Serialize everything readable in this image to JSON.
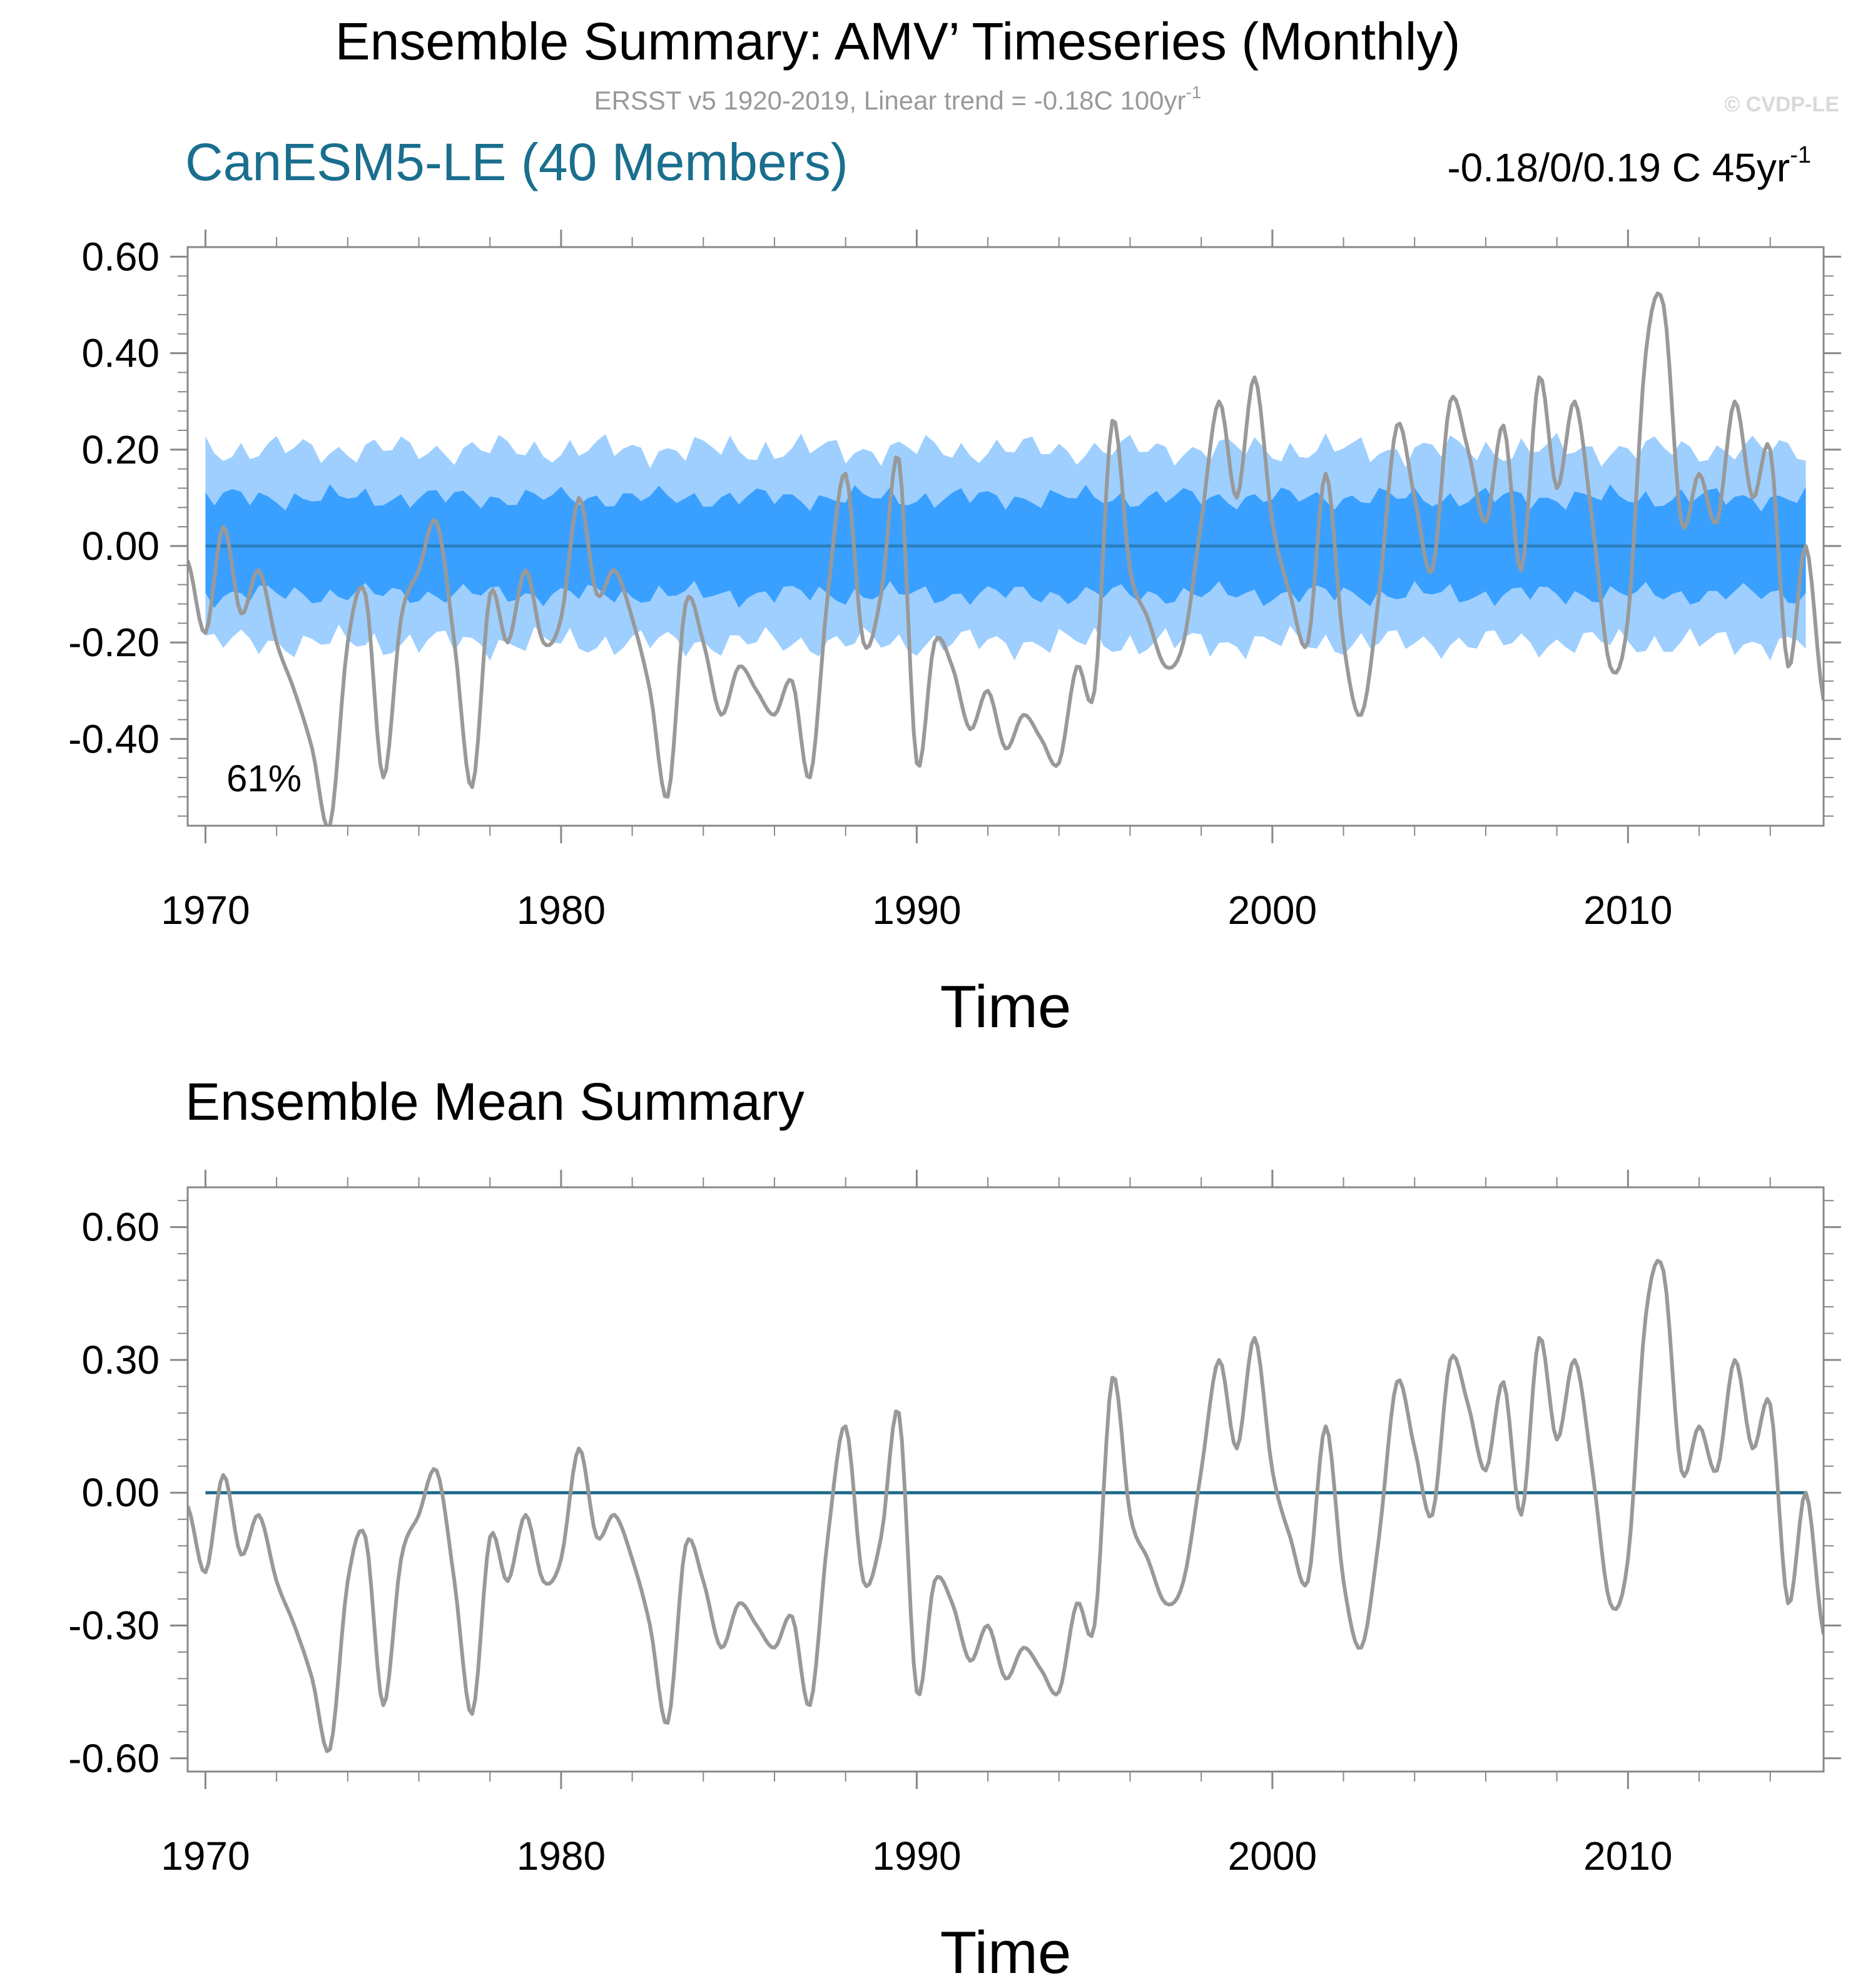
{
  "header": {
    "title": "Ensemble Summary: AMV’ Timeseries (Monthly)",
    "subtitle": "ERSST v5 1920-2019, Linear trend = -0.18C 100yr",
    "subtitle_sup": "-1",
    "watermark": "© CVDP-LE"
  },
  "colors": {
    "model_title": "#1a6e8e",
    "obs_line": "#999999",
    "band_outer": "#9ecfff",
    "band_inner": "#3aa0ff",
    "mean_line_top": "#2a7fc0",
    "mean_line_bottom": "#1f6a8a",
    "subtitle": "#999999",
    "watermark": "#d9d9d9"
  },
  "chart_data": [
    {
      "type": "line",
      "panel": "top",
      "title": "CanESM5-LE (40 Members)",
      "trend_label": "-0.18/0/0.19 C 45yr",
      "trend_sup": "-1",
      "percent_label": "61%",
      "xlabel": "Time",
      "ylabel": "",
      "xlim": [
        1969.5,
        2015.5
      ],
      "ylim": [
        -0.58,
        0.62
      ],
      "xticks": [
        1970,
        1980,
        1990,
        2000,
        2010
      ],
      "xtick_labels": [
        "1970",
        "1980",
        "1990",
        "2000",
        "2010"
      ],
      "yticks": [
        -0.4,
        -0.2,
        0.0,
        0.2,
        0.4,
        0.6
      ],
      "ytick_labels": [
        "-0.40",
        "-0.20",
        "0.00",
        "0.20",
        "0.40",
        "0.60"
      ],
      "bands": {
        "x_range": [
          1970,
          2015
        ],
        "outer_halfwidth_approx": 0.2,
        "inner_halfwidth_approx": 0.1,
        "ensemble_mean": 0.0
      },
      "series": [
        {
          "name": "ERSST v5 AMV",
          "x": [
            1969.5,
            1970.0,
            1970.5,
            1971.0,
            1971.5,
            1972.0,
            1972.5,
            1973.0,
            1973.5,
            1974.0,
            1974.5,
            1975.0,
            1975.5,
            1976.0,
            1976.5,
            1977.0,
            1977.5,
            1978.0,
            1978.5,
            1979.0,
            1979.5,
            1980.0,
            1980.5,
            1981.0,
            1981.5,
            1982.0,
            1982.5,
            1983.0,
            1983.5,
            1984.0,
            1984.5,
            1985.0,
            1985.5,
            1986.0,
            1986.5,
            1987.0,
            1987.5,
            1988.0,
            1988.5,
            1989.0,
            1989.5,
            1990.0,
            1990.5,
            1991.0,
            1991.5,
            1992.0,
            1992.5,
            1993.0,
            1993.5,
            1994.0,
            1994.5,
            1995.0,
            1995.5,
            1996.0,
            1996.5,
            1997.0,
            1997.5,
            1998.0,
            1998.5,
            1999.0,
            1999.5,
            2000.0,
            2000.5,
            2001.0,
            2001.5,
            2002.0,
            2002.5,
            2003.0,
            2003.5,
            2004.0,
            2004.5,
            2005.0,
            2005.5,
            2006.0,
            2006.5,
            2007.0,
            2007.5,
            2008.0,
            2008.5,
            2009.0,
            2009.5,
            2010.0,
            2010.5,
            2011.0,
            2011.5,
            2012.0,
            2012.5,
            2013.0,
            2013.5,
            2014.0,
            2014.5,
            2015.0,
            2015.5
          ],
          "values": [
            -0.03,
            -0.18,
            0.04,
            -0.14,
            -0.05,
            -0.2,
            -0.3,
            -0.42,
            -0.58,
            -0.2,
            -0.1,
            -0.48,
            -0.15,
            -0.05,
            0.05,
            -0.2,
            -0.5,
            -0.1,
            -0.2,
            -0.05,
            -0.2,
            -0.15,
            0.1,
            -0.1,
            -0.05,
            -0.15,
            -0.3,
            -0.52,
            -0.12,
            -0.2,
            -0.35,
            -0.25,
            -0.3,
            -0.35,
            -0.28,
            -0.48,
            -0.1,
            0.15,
            -0.2,
            -0.1,
            0.18,
            -0.45,
            -0.2,
            -0.25,
            -0.38,
            -0.3,
            -0.42,
            -0.35,
            -0.4,
            -0.45,
            -0.25,
            -0.3,
            0.26,
            -0.05,
            -0.15,
            -0.25,
            -0.2,
            0.05,
            0.3,
            0.1,
            0.35,
            0.05,
            -0.1,
            -0.2,
            0.15,
            -0.2,
            -0.35,
            -0.1,
            0.25,
            0.1,
            -0.05,
            0.3,
            0.2,
            0.05,
            0.25,
            -0.05,
            0.35,
            0.12,
            0.3,
            0.05,
            -0.25,
            -0.15,
            0.4,
            0.5,
            0.05,
            0.15,
            0.05,
            0.3,
            0.1,
            0.2,
            -0.25,
            0.0,
            -0.32
          ]
        }
      ]
    },
    {
      "type": "line",
      "panel": "bottom",
      "title": "Ensemble Mean Summary",
      "xlabel": "Time",
      "ylabel": "",
      "xlim": [
        1969.5,
        2015.5
      ],
      "ylim": [
        -0.63,
        0.69
      ],
      "xticks": [
        1970,
        1980,
        1990,
        2000,
        2010
      ],
      "xtick_labels": [
        "1970",
        "1980",
        "1990",
        "2000",
        "2010"
      ],
      "yticks": [
        -0.6,
        -0.3,
        0.0,
        0.3,
        0.6
      ],
      "ytick_labels": [
        "-0.60",
        "-0.30",
        "0.00",
        "0.30",
        "0.60"
      ],
      "ensemble_mean": 0.0,
      "series": [
        {
          "name": "ERSST v5 AMV",
          "x": [
            1969.5,
            1970.0,
            1970.5,
            1971.0,
            1971.5,
            1972.0,
            1972.5,
            1973.0,
            1973.5,
            1974.0,
            1974.5,
            1975.0,
            1975.5,
            1976.0,
            1976.5,
            1977.0,
            1977.5,
            1978.0,
            1978.5,
            1979.0,
            1979.5,
            1980.0,
            1980.5,
            1981.0,
            1981.5,
            1982.0,
            1982.5,
            1983.0,
            1983.5,
            1984.0,
            1984.5,
            1985.0,
            1985.5,
            1986.0,
            1986.5,
            1987.0,
            1987.5,
            1988.0,
            1988.5,
            1989.0,
            1989.5,
            1990.0,
            1990.5,
            1991.0,
            1991.5,
            1992.0,
            1992.5,
            1993.0,
            1993.5,
            1994.0,
            1994.5,
            1995.0,
            1995.5,
            1996.0,
            1996.5,
            1997.0,
            1997.5,
            1998.0,
            1998.5,
            1999.0,
            1999.5,
            2000.0,
            2000.5,
            2001.0,
            2001.5,
            2002.0,
            2002.5,
            2003.0,
            2003.5,
            2004.0,
            2004.5,
            2005.0,
            2005.5,
            2006.0,
            2006.5,
            2007.0,
            2007.5,
            2008.0,
            2008.5,
            2009.0,
            2009.5,
            2010.0,
            2010.5,
            2011.0,
            2011.5,
            2012.0,
            2012.5,
            2013.0,
            2013.5,
            2014.0,
            2014.5,
            2015.0,
            2015.5
          ],
          "values": [
            -0.03,
            -0.18,
            0.04,
            -0.14,
            -0.05,
            -0.2,
            -0.3,
            -0.42,
            -0.58,
            -0.2,
            -0.1,
            -0.48,
            -0.15,
            -0.05,
            0.05,
            -0.2,
            -0.5,
            -0.1,
            -0.2,
            -0.05,
            -0.2,
            -0.15,
            0.1,
            -0.1,
            -0.05,
            -0.15,
            -0.3,
            -0.52,
            -0.12,
            -0.2,
            -0.35,
            -0.25,
            -0.3,
            -0.35,
            -0.28,
            -0.48,
            -0.1,
            0.15,
            -0.2,
            -0.1,
            0.18,
            -0.45,
            -0.2,
            -0.25,
            -0.38,
            -0.3,
            -0.42,
            -0.35,
            -0.4,
            -0.45,
            -0.25,
            -0.3,
            0.26,
            -0.05,
            -0.15,
            -0.25,
            -0.2,
            0.05,
            0.3,
            0.1,
            0.35,
            0.05,
            -0.1,
            -0.2,
            0.15,
            -0.2,
            -0.35,
            -0.1,
            0.25,
            0.1,
            -0.05,
            0.3,
            0.2,
            0.05,
            0.25,
            -0.05,
            0.35,
            0.12,
            0.3,
            0.05,
            -0.25,
            -0.15,
            0.4,
            0.5,
            0.05,
            0.15,
            0.05,
            0.3,
            0.1,
            0.2,
            -0.25,
            0.0,
            -0.32
          ]
        }
      ]
    }
  ]
}
